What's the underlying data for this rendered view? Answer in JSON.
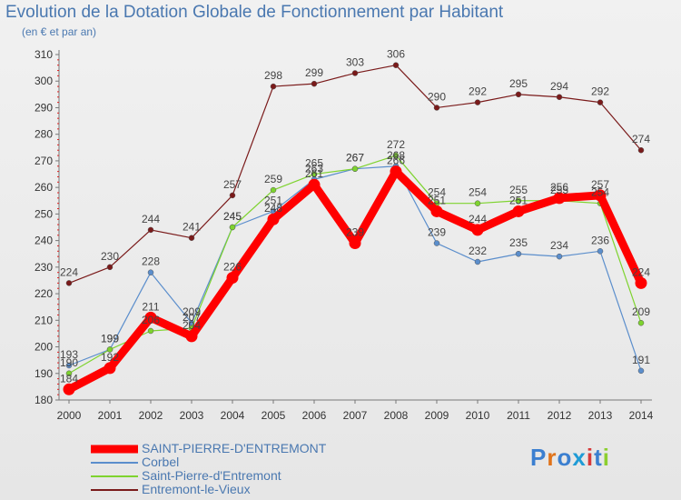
{
  "title": "Evolution de la Dotation Globale de Fonctionnement par Habitant",
  "subtitle": "(en € et par an)",
  "logo_text": "Proxiti",
  "chart_data": {
    "type": "line",
    "x": [
      "2000",
      "2001",
      "2002",
      "2003",
      "2004",
      "2005",
      "2006",
      "2007",
      "2008",
      "2009",
      "2010",
      "2011",
      "2012",
      "2013",
      "2014"
    ],
    "ylim": [
      180,
      310
    ],
    "yticks": [
      180,
      190,
      200,
      210,
      220,
      230,
      240,
      250,
      260,
      270,
      280,
      290,
      300,
      310
    ],
    "grid": false,
    "legend_position": "bottom-left",
    "series": [
      {
        "name": "SAINT-PIERRE-D'ENTREMONT",
        "color": "#ff0000",
        "width": 9,
        "values": [
          184,
          192,
          211,
          204,
          226,
          248,
          261,
          239,
          266,
          251,
          244,
          251,
          256,
          257,
          224
        ]
      },
      {
        "name": "Corbel",
        "color": "#5b8ecc",
        "width": 1.2,
        "values": [
          193,
          199,
          228,
          209,
          245,
          251,
          263,
          267,
          268,
          239,
          232,
          235,
          234,
          236,
          191
        ]
      },
      {
        "name": "Saint-Pierre-d'Entremont",
        "color": "#7ed32f",
        "width": 1.2,
        "values": [
          190,
          199,
          206,
          207,
          245,
          259,
          265,
          267,
          272,
          254,
          254,
          255,
          255,
          254,
          209
        ]
      },
      {
        "name": "Entremont-le-Vieux",
        "color": "#7a1a1a",
        "width": 1.2,
        "values": [
          224,
          230,
          244,
          241,
          257,
          298,
          299,
          303,
          306,
          290,
          292,
          295,
          294,
          292,
          274
        ]
      }
    ]
  }
}
